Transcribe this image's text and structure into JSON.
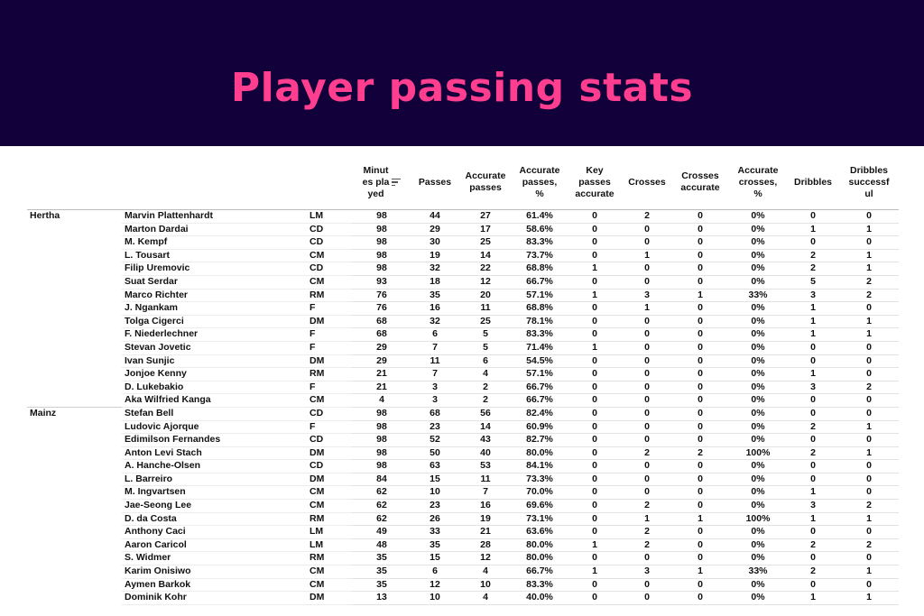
{
  "title": "Player passing stats",
  "chart_data": {
    "type": "table",
    "columns": [
      "",
      "",
      "",
      "Minutes played",
      "Passes",
      "Accurate passes",
      "Accurate passes, %",
      "Key passes accurate",
      "Crosses",
      "Crosses accurate",
      "Accurate crosses, %",
      "Dribbles",
      "Dribbles successful"
    ],
    "header_lines": {
      "minutes": [
        "Minut",
        "es pla",
        "yed"
      ],
      "passes": [
        "Passes"
      ],
      "acc_passes": [
        "Accurate",
        "passes"
      ],
      "acc_passes_pct": [
        "Accurate",
        "passes,",
        "%"
      ],
      "key_passes": [
        "Key",
        "passes",
        "accurate"
      ],
      "crosses": [
        "Crosses"
      ],
      "crosses_acc": [
        "Crosses",
        "accurate"
      ],
      "acc_crosses_pct": [
        "Accurate",
        "crosses,",
        "%"
      ],
      "dribbles": [
        "Dribbles"
      ],
      "dribbles_succ": [
        "Dribbles",
        "successf",
        "ul"
      ]
    },
    "rows": [
      [
        "Hertha",
        "Marvin Plattenhardt",
        "LM",
        "98",
        "44",
        "27",
        "61.4%",
        "0",
        "2",
        "0",
        "0%",
        "0",
        "0"
      ],
      [
        "",
        "Marton Dardai",
        "CD",
        "98",
        "29",
        "17",
        "58.6%",
        "0",
        "0",
        "0",
        "0%",
        "1",
        "1"
      ],
      [
        "",
        "M. Kempf",
        "CD",
        "98",
        "30",
        "25",
        "83.3%",
        "0",
        "0",
        "0",
        "0%",
        "0",
        "0"
      ],
      [
        "",
        "L. Tousart",
        "CM",
        "98",
        "19",
        "14",
        "73.7%",
        "0",
        "1",
        "0",
        "0%",
        "2",
        "1"
      ],
      [
        "",
        "Filip Uremovic",
        "CD",
        "98",
        "32",
        "22",
        "68.8%",
        "1",
        "0",
        "0",
        "0%",
        "2",
        "1"
      ],
      [
        "",
        "Suat Serdar",
        "CM",
        "93",
        "18",
        "12",
        "66.7%",
        "0",
        "0",
        "0",
        "0%",
        "5",
        "2"
      ],
      [
        "",
        "Marco Richter",
        "RM",
        "76",
        "35",
        "20",
        "57.1%",
        "1",
        "3",
        "1",
        "33%",
        "3",
        "2"
      ],
      [
        "",
        "J. Ngankam",
        "F",
        "76",
        "16",
        "11",
        "68.8%",
        "0",
        "1",
        "0",
        "0%",
        "1",
        "0"
      ],
      [
        "",
        "Tolga Cigerci",
        "DM",
        "68",
        "32",
        "25",
        "78.1%",
        "0",
        "0",
        "0",
        "0%",
        "1",
        "1"
      ],
      [
        "",
        "F. Niederlechner",
        "F",
        "68",
        "6",
        "5",
        "83.3%",
        "0",
        "0",
        "0",
        "0%",
        "1",
        "1"
      ],
      [
        "",
        "Stevan Jovetic",
        "F",
        "29",
        "7",
        "5",
        "71.4%",
        "1",
        "0",
        "0",
        "0%",
        "0",
        "0"
      ],
      [
        "",
        "Ivan Sunjic",
        "DM",
        "29",
        "11",
        "6",
        "54.5%",
        "0",
        "0",
        "0",
        "0%",
        "0",
        "0"
      ],
      [
        "",
        "Jonjoe Kenny",
        "RM",
        "21",
        "7",
        "4",
        "57.1%",
        "0",
        "0",
        "0",
        "0%",
        "1",
        "0"
      ],
      [
        "",
        "D. Lukebakio",
        "F",
        "21",
        "3",
        "2",
        "66.7%",
        "0",
        "0",
        "0",
        "0%",
        "3",
        "2"
      ],
      [
        "",
        "Aka Wilfried Kanga",
        "CM",
        "4",
        "3",
        "2",
        "66.7%",
        "0",
        "0",
        "0",
        "0%",
        "0",
        "0"
      ],
      [
        "Mainz",
        "Stefan Bell",
        "CD",
        "98",
        "68",
        "56",
        "82.4%",
        "0",
        "0",
        "0",
        "0%",
        "0",
        "0"
      ],
      [
        "",
        "Ludovic Ajorque",
        "F",
        "98",
        "23",
        "14",
        "60.9%",
        "0",
        "0",
        "0",
        "0%",
        "2",
        "1"
      ],
      [
        "",
        "Edimilson Fernandes",
        "CD",
        "98",
        "52",
        "43",
        "82.7%",
        "0",
        "0",
        "0",
        "0%",
        "0",
        "0"
      ],
      [
        "",
        "Anton Levi Stach",
        "DM",
        "98",
        "50",
        "40",
        "80.0%",
        "0",
        "2",
        "2",
        "100%",
        "2",
        "1"
      ],
      [
        "",
        "A. Hanche-Olsen",
        "CD",
        "98",
        "63",
        "53",
        "84.1%",
        "0",
        "0",
        "0",
        "0%",
        "0",
        "0"
      ],
      [
        "",
        "L. Barreiro",
        "DM",
        "84",
        "15",
        "11",
        "73.3%",
        "0",
        "0",
        "0",
        "0%",
        "0",
        "0"
      ],
      [
        "",
        "M. Ingvartsen",
        "CM",
        "62",
        "10",
        "7",
        "70.0%",
        "0",
        "0",
        "0",
        "0%",
        "1",
        "0"
      ],
      [
        "",
        "Jae-Seong Lee",
        "CM",
        "62",
        "23",
        "16",
        "69.6%",
        "0",
        "2",
        "0",
        "0%",
        "3",
        "2"
      ],
      [
        "",
        "D. da Costa",
        "RM",
        "62",
        "26",
        "19",
        "73.1%",
        "0",
        "1",
        "1",
        "100%",
        "1",
        "1"
      ],
      [
        "",
        "Anthony Caci",
        "LM",
        "49",
        "33",
        "21",
        "63.6%",
        "0",
        "2",
        "0",
        "0%",
        "0",
        "0"
      ],
      [
        "",
        "Aaron Caricol",
        "LM",
        "48",
        "35",
        "28",
        "80.0%",
        "1",
        "2",
        "0",
        "0%",
        "2",
        "2"
      ],
      [
        "",
        "S. Widmer",
        "RM",
        "35",
        "15",
        "12",
        "80.0%",
        "0",
        "0",
        "0",
        "0%",
        "0",
        "0"
      ],
      [
        "",
        "Karim Onisiwo",
        "CM",
        "35",
        "6",
        "4",
        "66.7%",
        "1",
        "3",
        "1",
        "33%",
        "2",
        "1"
      ],
      [
        "",
        "Aymen Barkok",
        "CM",
        "35",
        "12",
        "10",
        "83.3%",
        "0",
        "0",
        "0",
        "0%",
        "0",
        "0"
      ],
      [
        "",
        "Dominik Kohr",
        "DM",
        "13",
        "10",
        "4",
        "40.0%",
        "0",
        "0",
        "0",
        "0%",
        "1",
        "1"
      ]
    ]
  },
  "colors": {
    "banner_bg": "#12003a",
    "title": "#ff3e8f",
    "text": "#111111"
  },
  "icons": {
    "sort": "sort-descending-icon"
  }
}
